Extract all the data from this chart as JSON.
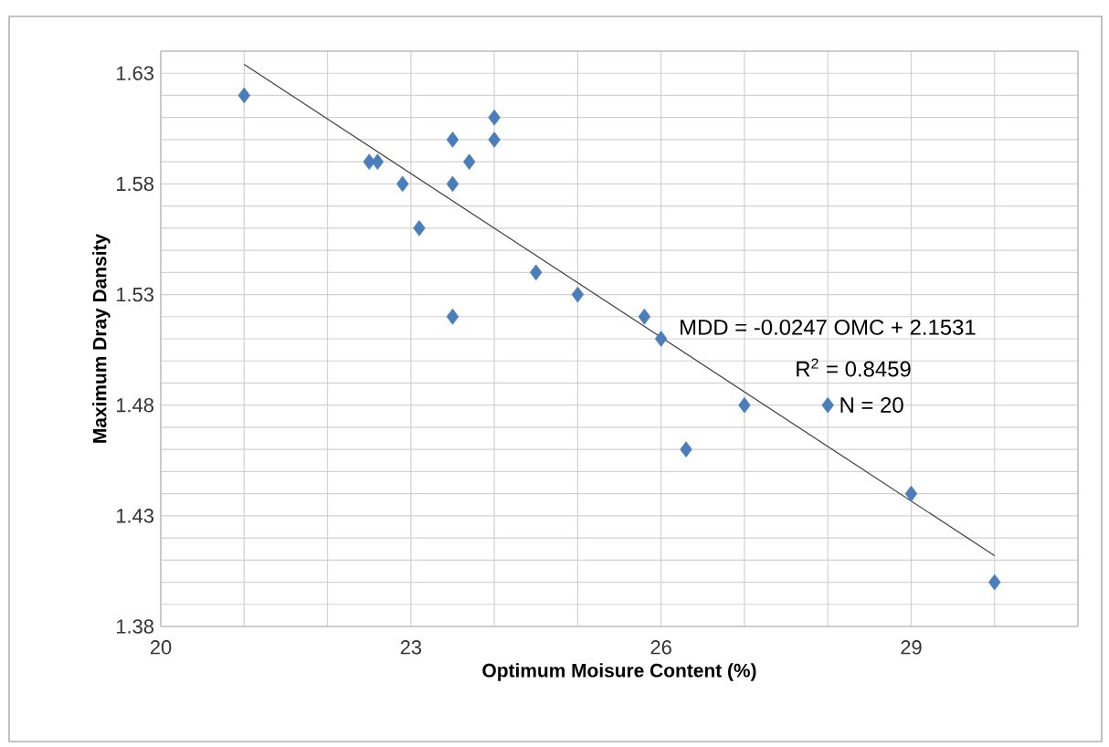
{
  "chart_data": {
    "type": "scatter",
    "xlabel": "Optimum Moisure Content (%)",
    "ylabel": "Maximum Dray Dansity",
    "annotations": [
      "MDD  = -0.0247 OMC + 2.1531",
      "R$^{2}$ = 0.8459",
      "N = 20"
    ],
    "xlim": [
      20,
      31
    ],
    "ylim": [
      1.38,
      1.64
    ],
    "xticks": [
      20,
      {
        "value": 21,
        "label": null
      },
      {
        "value": 22,
        "label": null
      },
      23,
      {
        "value": 24,
        "label": null
      },
      {
        "value": 25,
        "label": null
      },
      26,
      {
        "value": 27,
        "label": null
      },
      {
        "value": 28,
        "label": null
      },
      29,
      {
        "value": 30,
        "label": null
      },
      {
        "value": 31,
        "label": null
      }
    ],
    "yticks": [
      1.38,
      {
        "value": 1.39,
        "label": null
      },
      {
        "value": 1.4,
        "label": null
      },
      {
        "value": 1.41,
        "label": null
      },
      {
        "value": 1.42,
        "label": null
      },
      1.43,
      {
        "value": 1.44,
        "label": null
      },
      {
        "value": 1.45,
        "label": null
      },
      {
        "value": 1.46,
        "label": null
      },
      {
        "value": 1.47,
        "label": null
      },
      1.48,
      {
        "value": 1.49,
        "label": null
      },
      {
        "value": 1.5,
        "label": null
      },
      {
        "value": 1.51,
        "label": null
      },
      {
        "value": 1.52,
        "label": null
      },
      1.53,
      {
        "value": 1.54,
        "label": null
      },
      {
        "value": 1.55,
        "label": null
      },
      {
        "value": 1.56,
        "label": null
      },
      {
        "value": 1.57,
        "label": null
      },
      1.58,
      {
        "value": 1.59,
        "label": null
      },
      {
        "value": 1.6,
        "label": null
      },
      {
        "value": 1.61,
        "label": null
      },
      {
        "value": 1.62,
        "label": null
      },
      1.63,
      {
        "value": 1.64,
        "label": null
      }
    ],
    "grid": true,
    "series": [
      {
        "color": "#4a7ebb",
        "marker": "diamond",
        "x": [
          21,
          22.5,
          22.6,
          22.9,
          23.1,
          23.5,
          23.5,
          23.5,
          23.7,
          24,
          24,
          24.5,
          25,
          25.8,
          26,
          26.3,
          27,
          28,
          29,
          30
        ],
        "values": [
          1.62,
          1.59,
          1.59,
          1.58,
          1.56,
          1.6,
          1.58,
          1.52,
          1.59,
          1.61,
          1.6,
          1.54,
          1.53,
          1.52,
          1.51,
          1.46,
          1.48,
          1.48,
          1.44,
          1.4
        ]
      },
      {
        "type": "line",
        "color": "#404040",
        "marker": "none",
        "line_style": "solid",
        "x": [
          21,
          30
        ],
        "values": [
          1.634,
          1.412
        ]
      }
    ]
  }
}
